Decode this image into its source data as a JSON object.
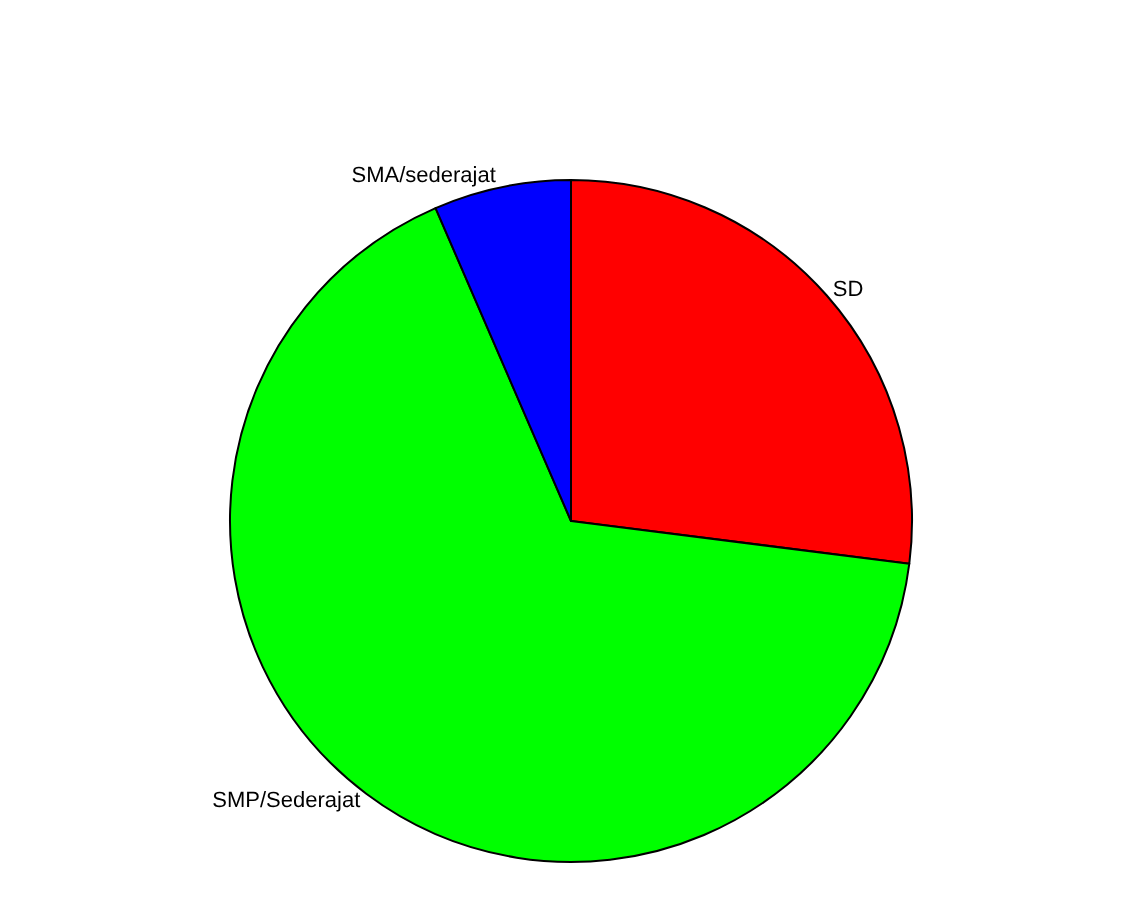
{
  "chart_data": {
    "type": "pie",
    "categories": [
      "SD",
      "SMP/Sederajat",
      "SMA/sederajat"
    ],
    "values": [
      27,
      66.5,
      6.5
    ],
    "colors": [
      "#ff0000",
      "#00ff00",
      "#0000ff"
    ],
    "legend": false
  }
}
